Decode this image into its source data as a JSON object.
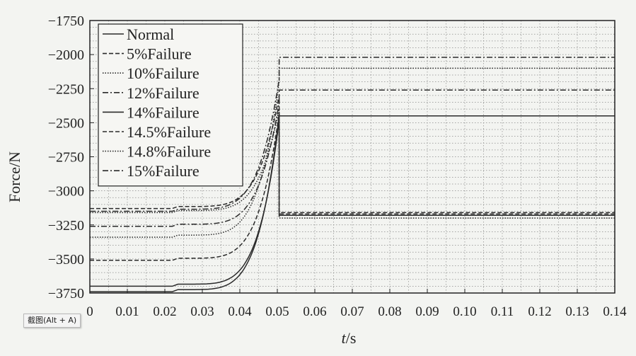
{
  "chart_data": {
    "type": "line",
    "xlabel_italic": "t",
    "xlabel_unit": "/s",
    "ylabel": "Force/N",
    "xlim": [
      0,
      0.14
    ],
    "ylim": [
      -3750,
      -1750
    ],
    "x_ticks": [
      0,
      0.01,
      0.02,
      0.03,
      0.04,
      0.05,
      0.06,
      0.07,
      0.08,
      0.09,
      0.1,
      0.11,
      0.12,
      0.13,
      0.14
    ],
    "x_tick_labels": [
      "0",
      "0.01",
      "0.02",
      "0.03",
      "0.04",
      "0.05",
      "0.06",
      "0.07",
      "0.08",
      "0.09",
      "0.10",
      "0.11",
      "0.12",
      "0.13",
      "0.14"
    ],
    "y_ticks": [
      -1750,
      -2000,
      -2250,
      -2500,
      -2750,
      -3000,
      -3250,
      -3500,
      -3750
    ],
    "y_tick_labels": [
      "−1750",
      "−2000",
      "−2250",
      "−2500",
      "−2750",
      "−3000",
      "−3250",
      "−3500",
      "−3750"
    ],
    "grid": true,
    "legend_position": "top-left",
    "line_color": "#2a2a2a",
    "series": [
      {
        "name": "Normal",
        "dash": "solid",
        "start": -3700,
        "peak": -2480,
        "after": -2450
      },
      {
        "name": "5%Failure",
        "dash": "dashed",
        "start": -3510,
        "peak": -2430,
        "after": -3170
      },
      {
        "name": "10%Failure",
        "dash": "dotted",
        "start": -3160,
        "peak": -2400,
        "after": -3200
      },
      {
        "name": "12%Failure",
        "dash": "dashdot",
        "start": -3260,
        "peak": -2350,
        "after": -2260
      },
      {
        "name": "14%Failure",
        "dash": "solid",
        "start": -3740,
        "peak": -2440,
        "after": -3180
      },
      {
        "name": "14.5%Failure",
        "dash": "dashed",
        "start": -3130,
        "peak": -2300,
        "after": -3160
      },
      {
        "name": "14.8%Failure",
        "dash": "dotted",
        "start": -3340,
        "peak": -2200,
        "after": -2100
      },
      {
        "name": "15%Failure",
        "dash": "dashdot",
        "start": -3150,
        "peak": -2180,
        "after": -2020
      }
    ],
    "step_start_x": 0.022,
    "jump_x": 0.0505
  },
  "tooltip_text": "截图(Alt + A)"
}
